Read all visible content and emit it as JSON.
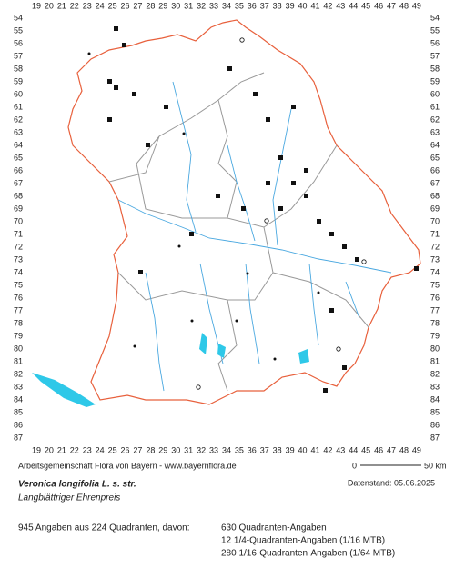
{
  "map": {
    "columns": [
      19,
      20,
      21,
      22,
      23,
      24,
      25,
      26,
      27,
      28,
      29,
      30,
      31,
      32,
      33,
      34,
      35,
      36,
      37,
      38,
      39,
      40,
      41,
      42,
      43,
      44,
      45,
      46,
      47,
      48,
      49
    ],
    "rows": [
      54,
      55,
      56,
      57,
      58,
      59,
      60,
      61,
      62,
      63,
      64,
      65,
      66,
      67,
      68,
      69,
      70,
      71,
      72,
      73,
      74,
      75,
      76,
      77,
      78,
      79,
      80,
      81,
      82,
      83,
      84,
      85,
      86,
      87
    ],
    "credit": "Arbeitsgemeinschaft Flora von Bayern - www.bayernflora.de",
    "scale_start": "0",
    "scale_end": "50 km",
    "date": "Datenstand: 05.06.2025"
  },
  "species": {
    "title": "Veronica longifolia L. s. str.",
    "subtitle": "Langblättriger Ehrenpreis"
  },
  "summary": {
    "total": "945 Angaben aus 224 Quadranten, davon:",
    "lines": [
      "630 Quadranten-Angaben",
      "12 1/4-Quadranten-Angaben (1/16 MTB)",
      "280 1/16-Quadranten-Angaben (1/64 MTB)"
    ]
  }
}
